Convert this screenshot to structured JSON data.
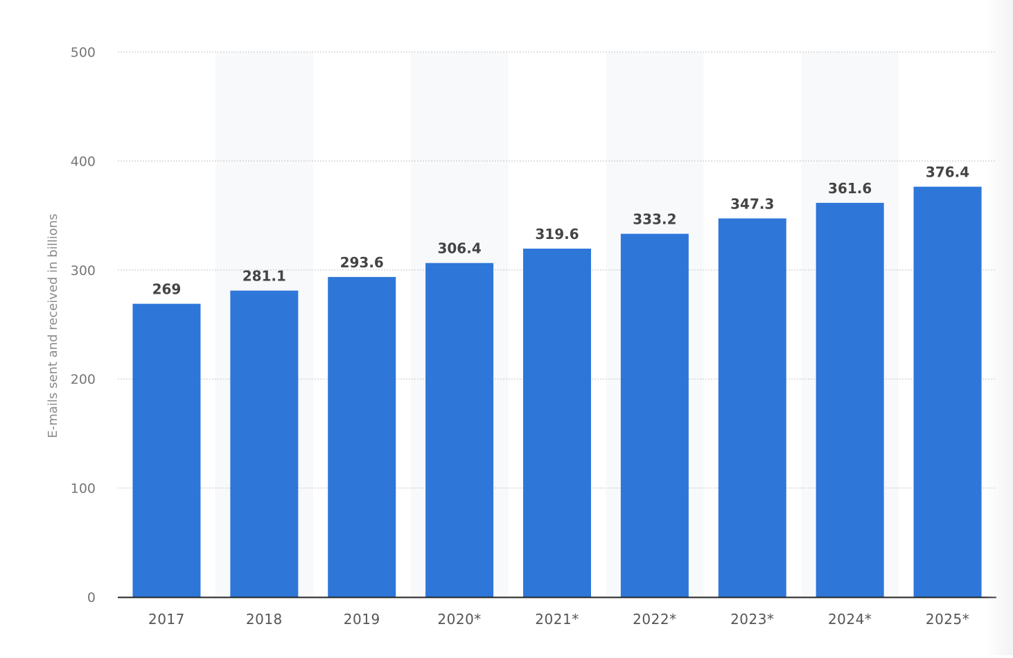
{
  "chart_data": {
    "type": "bar",
    "categories": [
      "2017",
      "2018",
      "2019",
      "2020*",
      "2021*",
      "2022*",
      "2023*",
      "2024*",
      "2025*"
    ],
    "values": [
      269,
      281.1,
      293.6,
      306.4,
      319.6,
      333.2,
      347.3,
      361.6,
      376.4
    ],
    "value_labels": [
      "269",
      "281.1",
      "293.6",
      "306.4",
      "319.6",
      "333.2",
      "347.3",
      "361.6",
      "376.4"
    ],
    "title": "",
    "xlabel": "",
    "ylabel": "E-mails sent and received in billions",
    "ylim": [
      0,
      500
    ],
    "yticks": [
      0,
      100,
      200,
      300,
      400,
      500
    ],
    "grid": true,
    "bar_color": "#2e77d9",
    "alt_band_color": "#f8f9fb"
  }
}
